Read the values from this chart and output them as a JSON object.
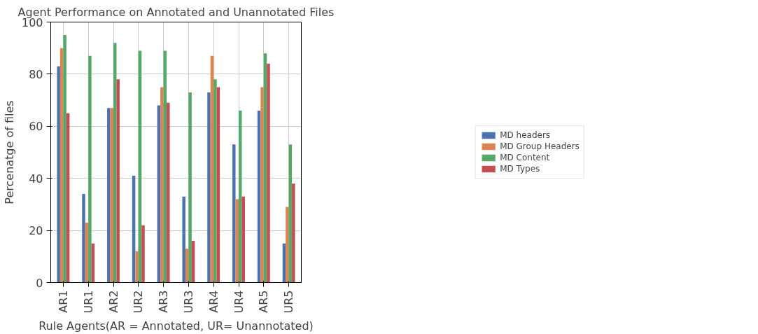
{
  "chart_data": {
    "type": "bar",
    "title": "Agent Performance on Annotated and Unannotated Files",
    "xlabel": "Rule Agents(AR = Annotated, UR= Unannotated)",
    "ylabel": "Percenatge of files",
    "categories": [
      "AR1",
      "UR1",
      "AR2",
      "UR2",
      "AR3",
      "UR3",
      "AR4",
      "UR4",
      "AR5",
      "UR5"
    ],
    "series": [
      {
        "name": "MD headers",
        "color": "#4c72b0",
        "values": [
          83,
          34,
          67,
          41,
          68,
          33,
          73,
          53,
          66,
          15
        ]
      },
      {
        "name": "MD Group Headers",
        "color": "#dd8452",
        "values": [
          90,
          23,
          67,
          12,
          75,
          13,
          87,
          32,
          75,
          29
        ]
      },
      {
        "name": "MD Content",
        "color": "#55a868",
        "values": [
          95,
          87,
          92,
          89,
          89,
          73,
          78,
          66,
          88,
          53
        ]
      },
      {
        "name": "MD Types",
        "color": "#c44e52",
        "values": [
          65,
          15,
          78,
          22,
          69,
          16,
          75,
          33,
          84,
          38
        ]
      }
    ],
    "ylim": [
      0,
      100
    ],
    "yticks": [
      0,
      20,
      40,
      60,
      80,
      100
    ],
    "grid": true,
    "legend": "right"
  }
}
